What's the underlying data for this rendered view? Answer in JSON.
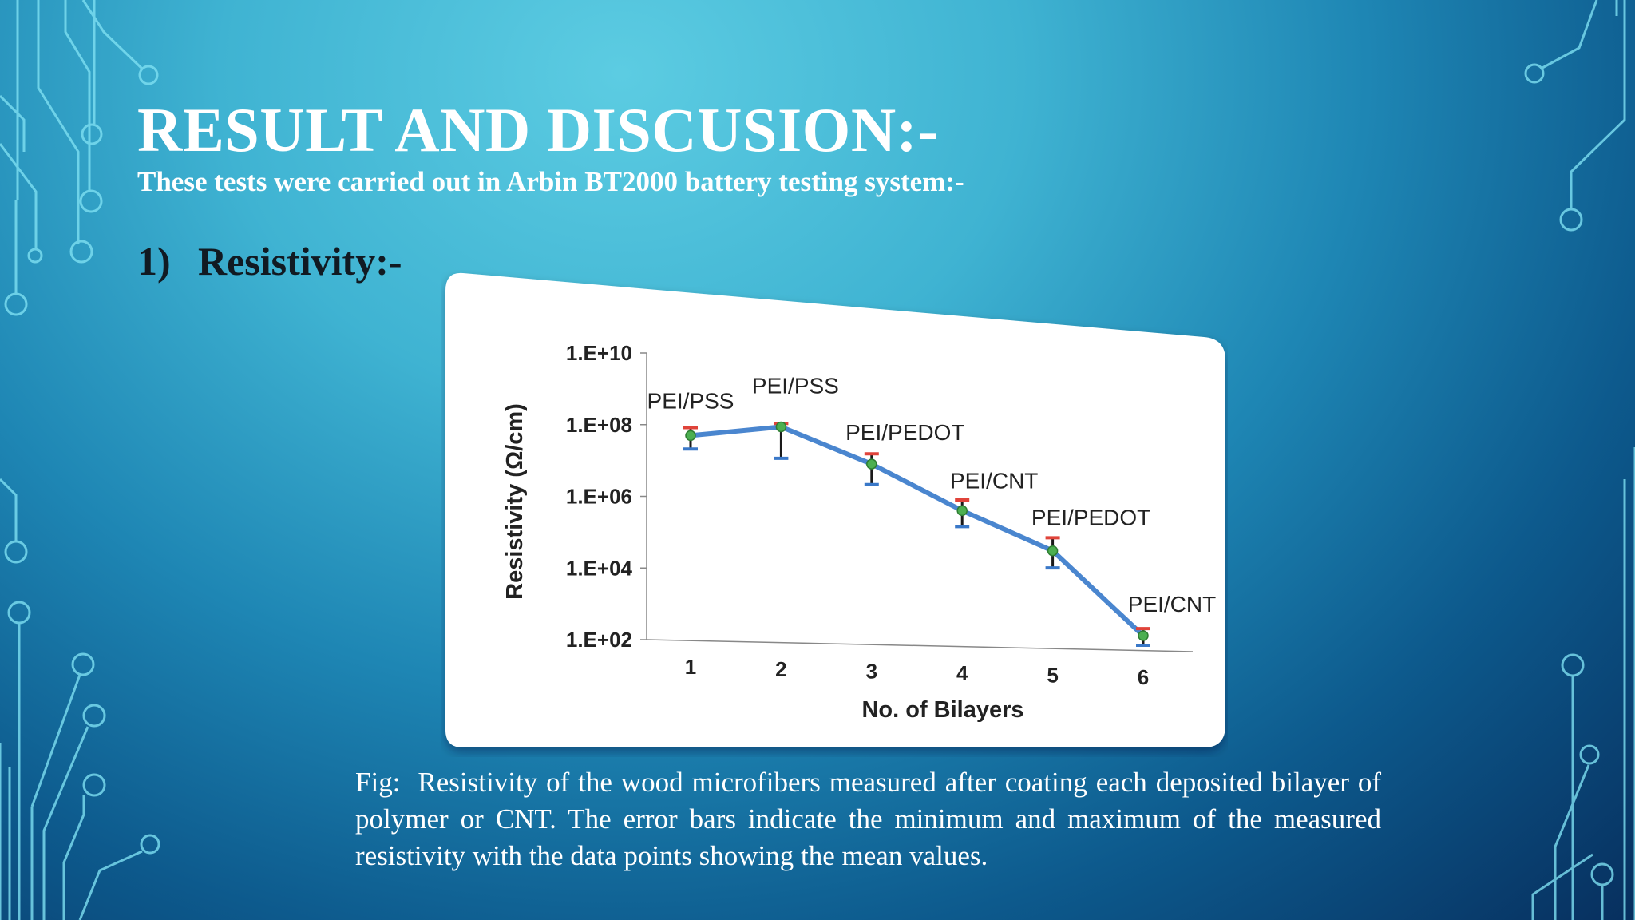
{
  "slide": {
    "title": "RESULT AND DISCUSION:-",
    "subtitle": "These tests were carried out in Arbin BT2000 battery testing system:-",
    "section": {
      "number": "1)",
      "label": "Resistivity:-"
    },
    "caption": {
      "prefix": "Fig:",
      "text": "Resistivity of the wood microfibers measured after coating each deposited bilayer of polymer or CNT. The error bars indicate the minimum and maximum of the measured resistivity with the data points showing the mean values."
    }
  },
  "colors": {
    "line": "#4a86cf",
    "error_bar": "#1a1a1a",
    "error_cap_top": "#e0433a",
    "marker": "#4caf50",
    "circuit": "#7ee0f2"
  },
  "chart_data": {
    "type": "line",
    "xlabel": "No. of Bilayers",
    "ylabel": "Resistivity  (Ω/cm)",
    "y_scale": "log",
    "ylim": [
      100,
      10000000000
    ],
    "y_ticks": [
      "1.E+02",
      "1.E+04",
      "1.E+06",
      "1.E+08",
      "1.E+10"
    ],
    "categories": [
      "1",
      "2",
      "3",
      "4",
      "5",
      "6"
    ],
    "series": [
      {
        "values": [
          60000000,
          160000000,
          20000000,
          1200000,
          100000,
          300
        ],
        "err_min": [
          25000000,
          20000000,
          5000000,
          400000,
          30000,
          150
        ],
        "err_max": [
          100000000,
          200000000,
          40000000,
          2500000,
          250000,
          500
        ]
      }
    ],
    "point_labels": [
      "PEI/PSS",
      "PEI/PSS",
      "PEI/PEDOT",
      "PEI/CNT",
      "PEI/PEDOT",
      "PEI/CNT"
    ]
  }
}
